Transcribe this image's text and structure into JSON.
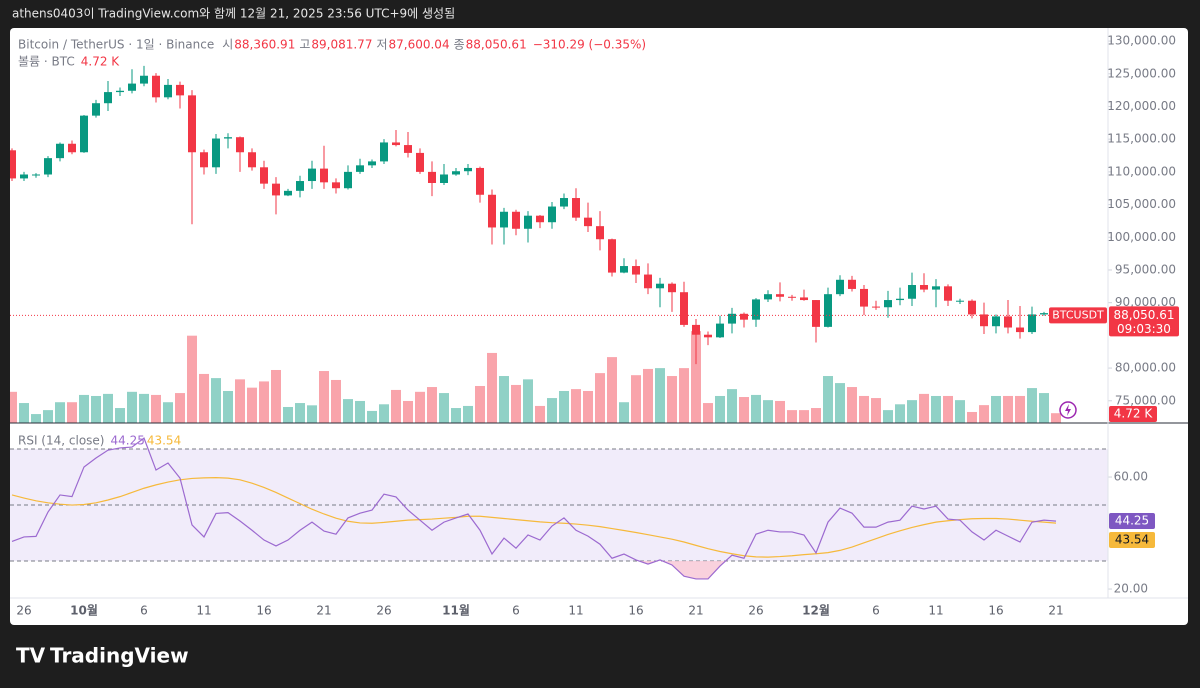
{
  "header": {
    "caption": "athens0403이 TradingView.com와 함께 12월 21, 2025 23:56 UTC+9에 생성됨"
  },
  "footer": {
    "brand": "TradingView"
  },
  "chart_data": {
    "type": "candlestick",
    "symbol": "Bitcoin / TetherUS · 1일 · Binance",
    "open_text": "시",
    "high_text": "고",
    "low_text": "저",
    "close_text": "종",
    "change_label": "−310.29 (−0.35%)",
    "volume_title": "볼륨 · BTC",
    "volume_last_label": "4.72 K",
    "ticker_tag": "BTCUSDT",
    "countdown": "09:03:30",
    "rsi_title": "RSI (14, close)",
    "categories": [
      null,
      "26",
      null,
      null,
      null,
      null,
      "10월",
      null,
      null,
      null,
      null,
      "6",
      null,
      null,
      null,
      null,
      "11",
      null,
      null,
      null,
      null,
      "16",
      null,
      null,
      null,
      null,
      "21",
      null,
      null,
      null,
      null,
      "26",
      null,
      null,
      null,
      null,
      null,
      "11월",
      null,
      null,
      null,
      null,
      "6",
      null,
      null,
      null,
      null,
      "11",
      null,
      null,
      null,
      null,
      "16",
      null,
      null,
      null,
      null,
      "21",
      null,
      null,
      null,
      null,
      "26",
      null,
      null,
      null,
      null,
      "12월",
      null,
      null,
      null,
      null,
      "6",
      null,
      null,
      null,
      null,
      "11",
      null,
      null,
      null,
      null,
      "16",
      null,
      null,
      null,
      null,
      "21"
    ],
    "open": [
      113300,
      109000,
      109600,
      109600,
      112100,
      114300,
      113000,
      118600,
      120500,
      122200,
      122400,
      123500,
      124700,
      121400,
      123300,
      121700,
      113000,
      110700,
      115100,
      115300,
      113000,
      110700,
      108200,
      106400,
      107100,
      108600,
      110500,
      108400,
      107500,
      110000,
      111000,
      111600,
      114500,
      114100,
      112900,
      110000,
      108300,
      109600,
      110100,
      110600,
      106500,
      101500,
      103900,
      101300,
      103300,
      102300,
      104700,
      106000,
      103000,
      101700,
      99700,
      94600,
      95600,
      94300,
      92200,
      92900,
      91600,
      86600,
      85100,
      84700,
      86800,
      88300,
      87400,
      90500,
      91300,
      90900,
      90800,
      90400,
      86300,
      91300,
      93500,
      92100,
      89400,
      89300,
      90400,
      90600,
      92700,
      92000,
      92500,
      90300,
      90300,
      88200,
      86400,
      87900,
      86200,
      85500,
      88200,
      88360.91
    ],
    "high": [
      113600,
      110000,
      109800,
      112400,
      114500,
      114800,
      118700,
      121000,
      123900,
      122900,
      125700,
      126200,
      125100,
      124200,
      123800,
      122500,
      113400,
      115800,
      115900,
      115400,
      113600,
      111700,
      109200,
      107400,
      109400,
      111700,
      114000,
      109000,
      111000,
      112000,
      111900,
      115000,
      116400,
      116100,
      113600,
      111600,
      111200,
      110600,
      111200,
      110800,
      107300,
      104500,
      104200,
      104000,
      103400,
      105400,
      106700,
      107500,
      105300,
      104000,
      99800,
      96800,
      96600,
      96000,
      93800,
      93100,
      93200,
      87500,
      85600,
      88000,
      89200,
      88500,
      90700,
      91900,
      93100,
      91200,
      92000,
      90400,
      92300,
      94200,
      94100,
      92700,
      90300,
      91800,
      92300,
      94600,
      94500,
      93600,
      92800,
      90600,
      90500,
      90000,
      88200,
      90400,
      89500,
      89400,
      88600,
      89081.77
    ],
    "low": [
      108600,
      108600,
      109100,
      109200,
      111600,
      112700,
      112900,
      118300,
      119300,
      121600,
      122000,
      123100,
      120600,
      121100,
      119700,
      102000,
      109600,
      109700,
      113600,
      110000,
      110200,
      107400,
      103500,
      106300,
      106100,
      107400,
      107400,
      106700,
      107300,
      109700,
      110600,
      111200,
      113900,
      112200,
      109700,
      106300,
      108000,
      109400,
      109500,
      105300,
      98900,
      98900,
      100300,
      99200,
      101400,
      101300,
      104300,
      102500,
      100800,
      98000,
      94000,
      94500,
      93000,
      91300,
      89300,
      88600,
      86300,
      80600,
      83500,
      84600,
      85300,
      86200,
      86300,
      90100,
      90200,
      90300,
      90300,
      83900,
      86200,
      91000,
      91700,
      88100,
      88900,
      87700,
      89600,
      89500,
      91600,
      89300,
      89500,
      89800,
      87600,
      85200,
      85300,
      85300,
      84500,
      85200,
      88000,
      87600.04
    ],
    "close": [
      109000,
      109600,
      109600,
      112100,
      114300,
      113000,
      118600,
      120500,
      122200,
      122400,
      123500,
      124700,
      121400,
      123300,
      121700,
      113000,
      110700,
      115100,
      115300,
      113000,
      110700,
      108200,
      106400,
      107100,
      108600,
      110500,
      108400,
      107500,
      110000,
      111000,
      111600,
      114500,
      114100,
      112900,
      110000,
      108300,
      109600,
      110100,
      110600,
      106500,
      101500,
      103900,
      101300,
      103300,
      102300,
      104700,
      106000,
      103000,
      101700,
      99700,
      94600,
      95600,
      94300,
      92200,
      92900,
      91600,
      86600,
      85100,
      84700,
      86800,
      88300,
      87400,
      90500,
      91300,
      90900,
      90800,
      90400,
      86300,
      91300,
      93500,
      92100,
      89400,
      89300,
      90400,
      90600,
      92700,
      92000,
      92500,
      90300,
      90300,
      88200,
      86400,
      87900,
      86200,
      85500,
      88200,
      88400,
      88050.61
    ],
    "volume": [
      15,
      9.6,
      4.3,
      6.2,
      10,
      10,
      13.5,
      13,
      14,
      7.2,
      15,
      14,
      13.5,
      10,
      14.4,
      42,
      23.6,
      21.6,
      15.4,
      21,
      17,
      20,
      25.5,
      7.7,
      9.6,
      8.5,
      25,
      20.7,
      11.5,
      10.6,
      5.8,
      9,
      15.9,
      10.6,
      15,
      17.3,
      14.4,
      7.2,
      8.2,
      17.8,
      33.7,
      22.6,
      18.3,
      21,
      8.2,
      12,
      15.4,
      16.3,
      15.4,
      24,
      31.7,
      10,
      23,
      26,
      26.4,
      22.6,
      26.4,
      44.2,
      9.6,
      13,
      16.3,
      12.5,
      13.5,
      11,
      10.6,
      6.2,
      6.2,
      7.2,
      22.6,
      19.2,
      17.3,
      13,
      12,
      6.2,
      9,
      11,
      14,
      13,
      13,
      11,
      5.3,
      8.6,
      13,
      13,
      13,
      16.8,
      14.4,
      4.72
    ],
    "volume_lim": [
      0,
      190
    ],
    "rsi": [
      37,
      38.6,
      38.8,
      47.5,
      53.6,
      53,
      63.6,
      66.8,
      69.6,
      70.4,
      70.7,
      73.9,
      62.5,
      65,
      59.6,
      42.9,
      38.6,
      47,
      47.3,
      44.3,
      41,
      37.5,
      35.4,
      37.5,
      41,
      43.9,
      40.7,
      39.6,
      45.4,
      47.1,
      48.2,
      53.9,
      52.9,
      48.2,
      44.6,
      41,
      43.9,
      45.4,
      46.8,
      41,
      32.5,
      38.2,
      34.6,
      39.3,
      37.5,
      42.5,
      45.4,
      41,
      38.9,
      36,
      31,
      32.5,
      30.4,
      28.9,
      30.4,
      28.6,
      24.6,
      23.6,
      23.6,
      28.2,
      32.1,
      31,
      39.6,
      41,
      40.4,
      40.4,
      39.3,
      32.9,
      43.9,
      48.9,
      47.1,
      42.1,
      42.1,
      43.9,
      44.6,
      49.6,
      48.6,
      49.6,
      45,
      44.6,
      40.4,
      37.5,
      41,
      38.9,
      36.8,
      43.9,
      44.6,
      44.25
    ],
    "rsi_ma": [
      53.6,
      52.5,
      51.5,
      50.8,
      50.3,
      50,
      50.2,
      50.8,
      51.8,
      53,
      54.5,
      56,
      57.2,
      58.2,
      59,
      59.5,
      59.7,
      59.8,
      59.6,
      59,
      57.8,
      56.3,
      54.5,
      52.5,
      50.5,
      48.5,
      46.8,
      45.3,
      44.2,
      43.6,
      43.5,
      43.8,
      44.2,
      44.6,
      44.8,
      45,
      45.3,
      45.6,
      46,
      46,
      45.6,
      45.2,
      44.8,
      44.4,
      44,
      43.7,
      43.5,
      43.2,
      42.8,
      42.3,
      41.6,
      40.9,
      40.2,
      39.4,
      38.6,
      37.8,
      36.8,
      35.6,
      34.4,
      33.4,
      32.6,
      31.9,
      31.5,
      31.4,
      31.6,
      31.9,
      32.3,
      32.6,
      33,
      33.8,
      35,
      36.5,
      38,
      39.5,
      40.8,
      42,
      43,
      43.9,
      44.4,
      44.8,
      45.1,
      45.2,
      45.2,
      45,
      44.6,
      44.2,
      43.9,
      43.54
    ],
    "rsi_bands": [
      70,
      50,
      30
    ],
    "ylim": [
      71600,
      132000
    ],
    "yticks": [
      {
        "value": 75000,
        "label": "75,000.00"
      },
      {
        "value": 80000,
        "label": "80,000.00"
      },
      {
        "value": 90000,
        "label": "90,000.00"
      },
      {
        "value": 95000,
        "label": "95,000.00"
      },
      {
        "value": 100000,
        "label": "100,000.00"
      },
      {
        "value": 105000,
        "label": "105,000.00"
      },
      {
        "value": 110000,
        "label": "110,000.00"
      },
      {
        "value": 115000,
        "label": "115,000.00"
      },
      {
        "value": 120000,
        "label": "120,000.00"
      },
      {
        "value": 125000,
        "label": "125,000.00"
      },
      {
        "value": 130000,
        "label": "130,000.00"
      }
    ],
    "rsi_lim": [
      16.8,
      79.3
    ],
    "rsi_ticks": [
      {
        "value": 60,
        "label": "60.00"
      },
      {
        "value": 20,
        "label": "20.00"
      }
    ],
    "up_color": "#089981",
    "down_color": "#f23645",
    "rsi_color": "#9c6ad0",
    "rsi_ma_color": "#f6b93b"
  }
}
